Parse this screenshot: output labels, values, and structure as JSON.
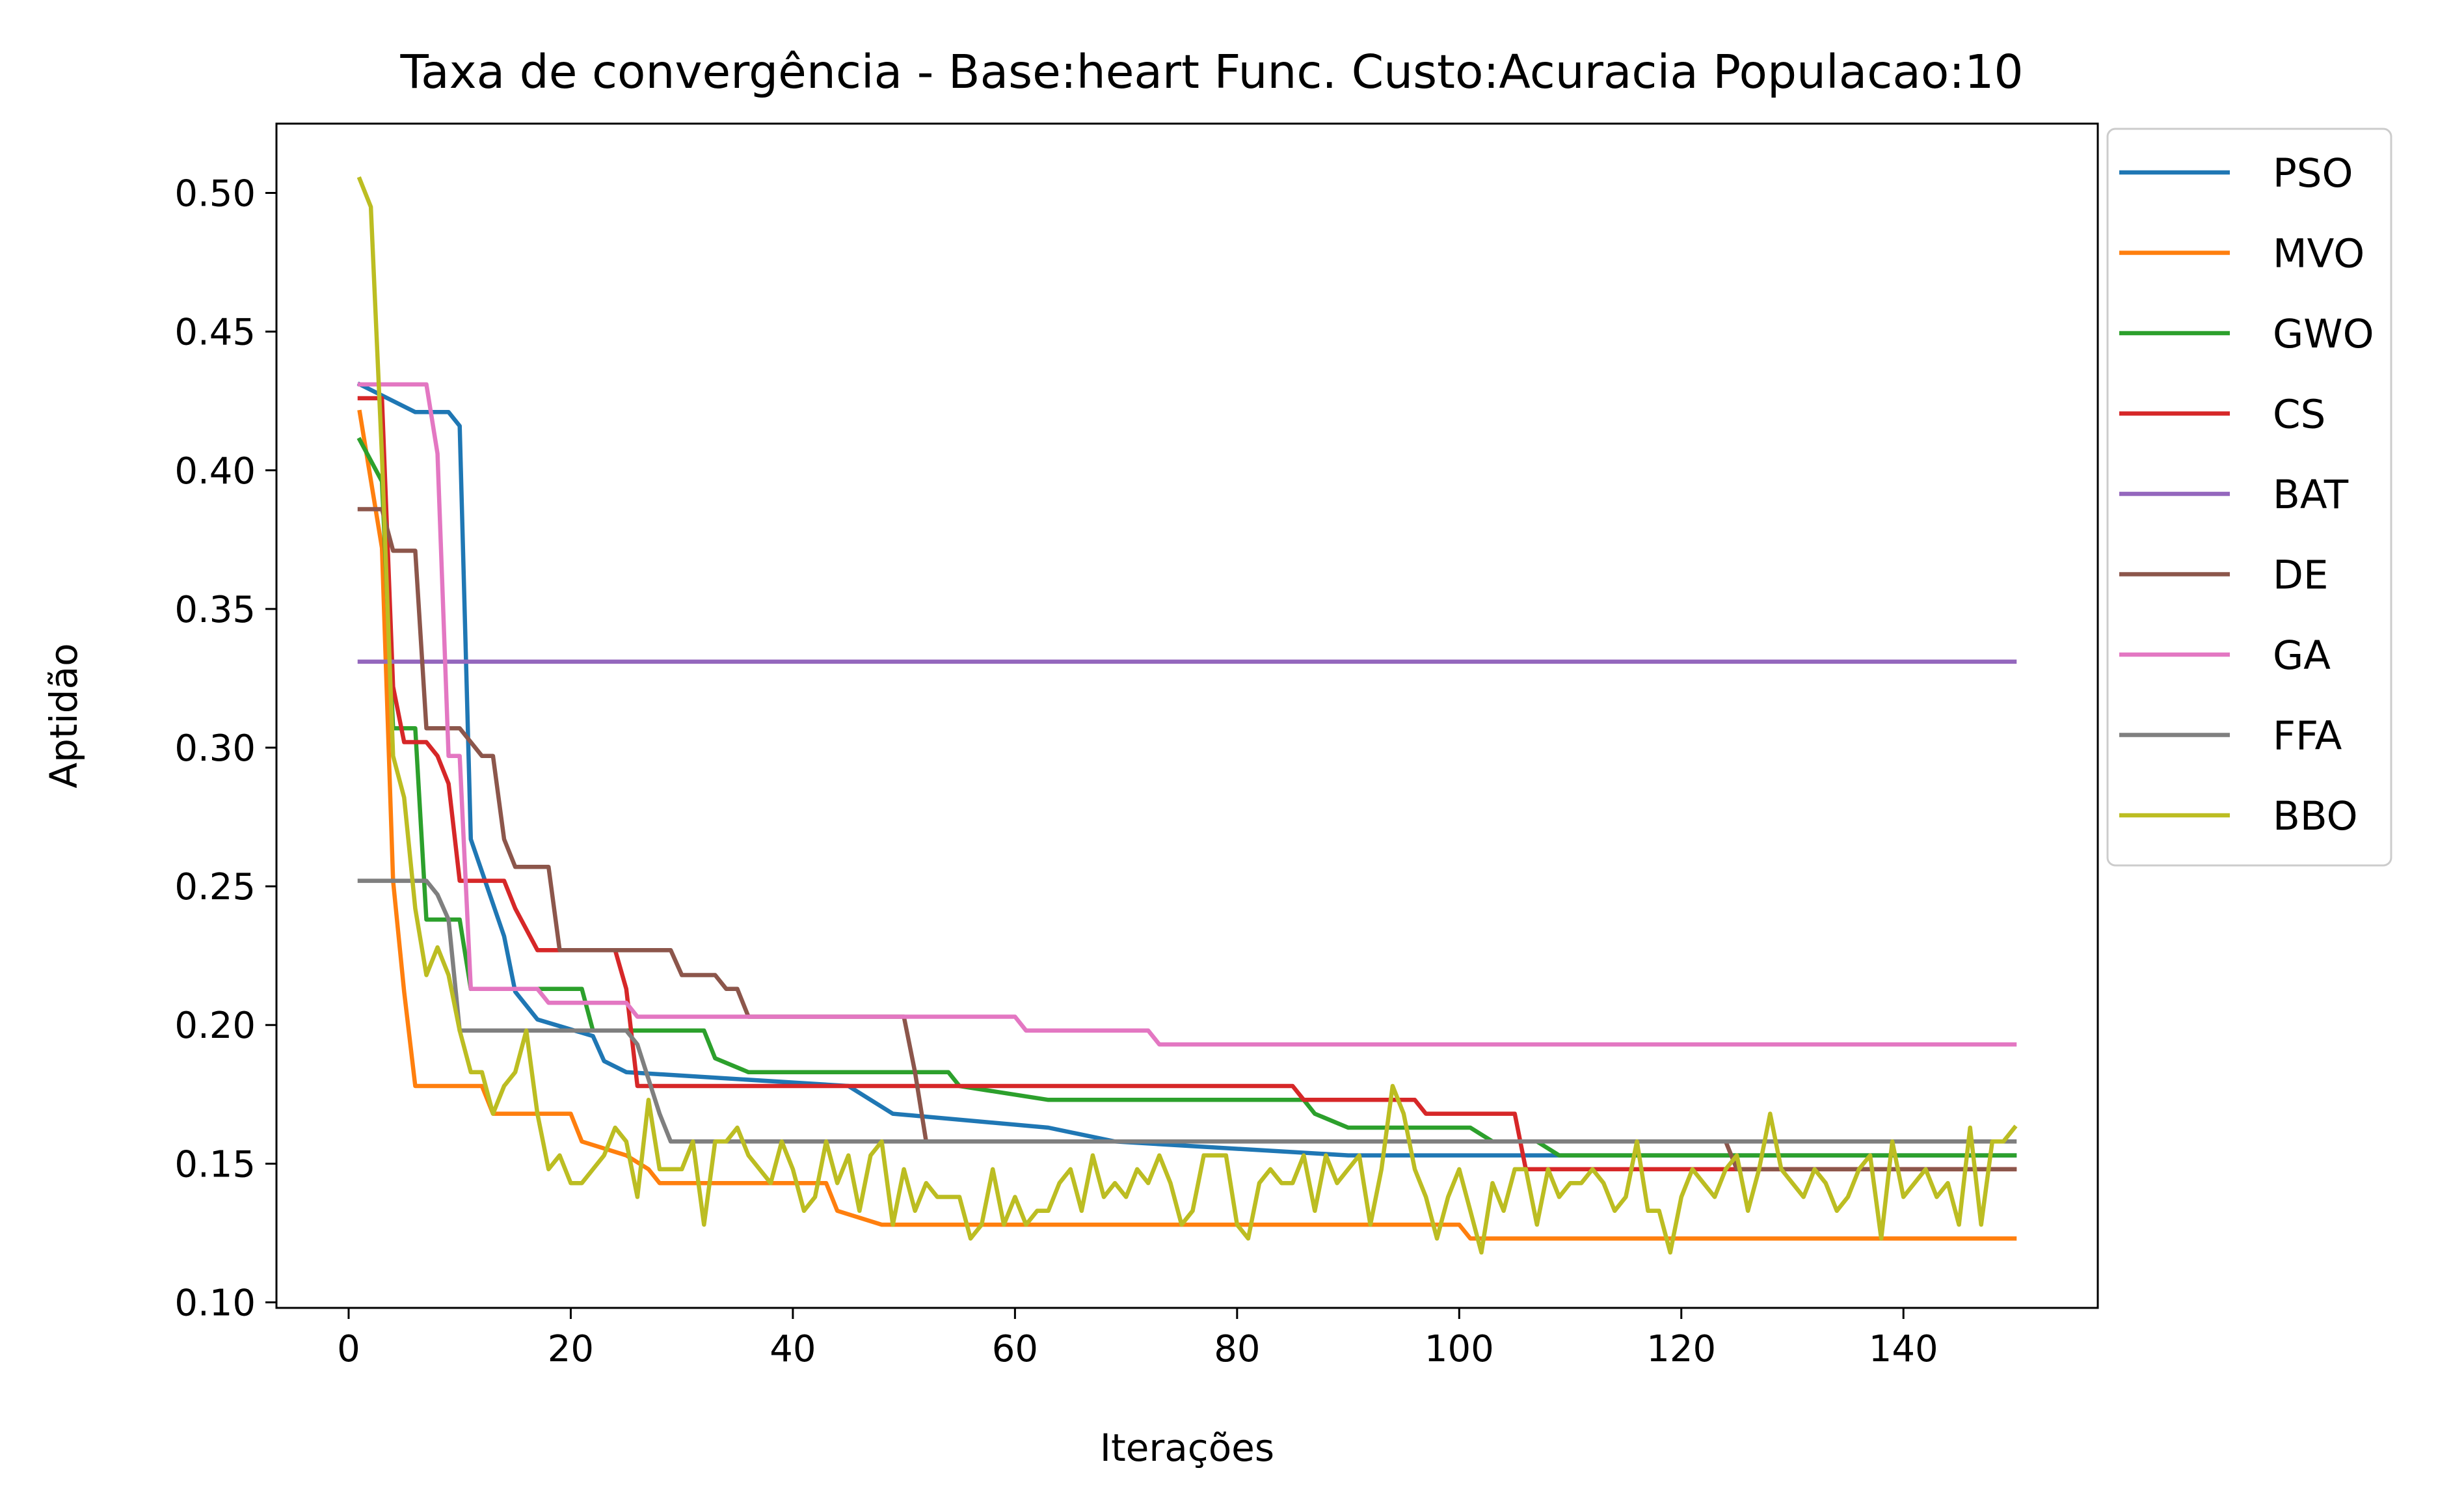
{
  "chart_data": {
    "type": "line",
    "title": "Taxa de convergência - Base:heart Func. Custo:Acuracia Populacao:10",
    "xlabel": "Iterações",
    "ylabel": "Aptidão",
    "xlim": [
      -6.5,
      157.5
    ],
    "ylim": [
      0.098,
      0.525
    ],
    "xticks": [
      0,
      20,
      40,
      60,
      80,
      100,
      120,
      140
    ],
    "yticks": [
      0.1,
      0.15,
      0.2,
      0.25,
      0.3,
      0.35,
      0.4,
      0.45,
      0.5
    ],
    "xtick_labels": [
      "0",
      "20",
      "40",
      "60",
      "80",
      "100",
      "120",
      "140"
    ],
    "ytick_labels": [
      "0.10",
      "0.15",
      "0.20",
      "0.25",
      "0.30",
      "0.35",
      "0.40",
      "0.45",
      "0.50"
    ],
    "grid": false,
    "legend_position": "outside-top-right",
    "series": [
      {
        "name": "PSO",
        "color": "#1f77b4",
        "points": [
          [
            1,
            0.431
          ],
          [
            6,
            0.421
          ],
          [
            9,
            0.421
          ],
          [
            10,
            0.416
          ],
          [
            11,
            0.267
          ],
          [
            14,
            0.232
          ],
          [
            15,
            0.212
          ],
          [
            17,
            0.202
          ],
          [
            22,
            0.196
          ],
          [
            23,
            0.187
          ],
          [
            25,
            0.183
          ],
          [
            45,
            0.178
          ],
          [
            49,
            0.168
          ],
          [
            63,
            0.163
          ],
          [
            69,
            0.158
          ],
          [
            90,
            0.153
          ],
          [
            150,
            0.153
          ]
        ]
      },
      {
        "name": "MVO",
        "color": "#ff7f0e",
        "points": [
          [
            1,
            0.421
          ],
          [
            3,
            0.372
          ],
          [
            4,
            0.252
          ],
          [
            5,
            0.212
          ],
          [
            6,
            0.178
          ],
          [
            12,
            0.178
          ],
          [
            13,
            0.168
          ],
          [
            20,
            0.168
          ],
          [
            21,
            0.158
          ],
          [
            25,
            0.153
          ],
          [
            27,
            0.148
          ],
          [
            28,
            0.143
          ],
          [
            43,
            0.143
          ],
          [
            44,
            0.133
          ],
          [
            48,
            0.128
          ],
          [
            100,
            0.128
          ],
          [
            101,
            0.123
          ],
          [
            150,
            0.123
          ]
        ]
      },
      {
        "name": "GWO",
        "color": "#2ca02c",
        "points": [
          [
            1,
            0.411
          ],
          [
            3,
            0.396
          ],
          [
            4,
            0.307
          ],
          [
            6,
            0.307
          ],
          [
            7,
            0.238
          ],
          [
            10,
            0.238
          ],
          [
            11,
            0.213
          ],
          [
            21,
            0.213
          ],
          [
            22,
            0.198
          ],
          [
            32,
            0.198
          ],
          [
            33,
            0.188
          ],
          [
            36,
            0.183
          ],
          [
            54,
            0.183
          ],
          [
            55,
            0.178
          ],
          [
            63,
            0.173
          ],
          [
            86,
            0.173
          ],
          [
            87,
            0.168
          ],
          [
            90,
            0.163
          ],
          [
            101,
            0.163
          ],
          [
            103,
            0.158
          ],
          [
            107,
            0.158
          ],
          [
            109,
            0.153
          ],
          [
            150,
            0.153
          ]
        ]
      },
      {
        "name": "CS",
        "color": "#d62728",
        "points": [
          [
            1,
            0.426
          ],
          [
            3,
            0.426
          ],
          [
            4,
            0.322
          ],
          [
            5,
            0.302
          ],
          [
            7,
            0.302
          ],
          [
            8,
            0.297
          ],
          [
            9,
            0.287
          ],
          [
            10,
            0.252
          ],
          [
            14,
            0.252
          ],
          [
            15,
            0.242
          ],
          [
            17,
            0.227
          ],
          [
            24,
            0.227
          ],
          [
            25,
            0.213
          ],
          [
            26,
            0.178
          ],
          [
            85,
            0.178
          ],
          [
            86,
            0.173
          ],
          [
            96,
            0.173
          ],
          [
            97,
            0.168
          ],
          [
            105,
            0.168
          ],
          [
            106,
            0.148
          ],
          [
            150,
            0.148
          ]
        ]
      },
      {
        "name": "BAT",
        "color": "#9467bd",
        "points": [
          [
            1,
            0.331
          ],
          [
            150,
            0.331
          ]
        ]
      },
      {
        "name": "DE",
        "color": "#8c564b",
        "points": [
          [
            1,
            0.386
          ],
          [
            3,
            0.386
          ],
          [
            4,
            0.371
          ],
          [
            6,
            0.371
          ],
          [
            7,
            0.307
          ],
          [
            10,
            0.307
          ],
          [
            11,
            0.302
          ],
          [
            12,
            0.297
          ],
          [
            13,
            0.297
          ],
          [
            14,
            0.267
          ],
          [
            15,
            0.257
          ],
          [
            18,
            0.257
          ],
          [
            19,
            0.227
          ],
          [
            29,
            0.227
          ],
          [
            30,
            0.218
          ],
          [
            33,
            0.218
          ],
          [
            34,
            0.213
          ],
          [
            35,
            0.213
          ],
          [
            36,
            0.203
          ],
          [
            50,
            0.203
          ],
          [
            51,
            0.183
          ],
          [
            52,
            0.158
          ],
          [
            124,
            0.158
          ],
          [
            125,
            0.148
          ],
          [
            150,
            0.148
          ]
        ]
      },
      {
        "name": "GA",
        "color": "#e377c2",
        "points": [
          [
            1,
            0.431
          ],
          [
            7,
            0.431
          ],
          [
            8,
            0.406
          ],
          [
            9,
            0.297
          ],
          [
            10,
            0.297
          ],
          [
            11,
            0.213
          ],
          [
            17,
            0.213
          ],
          [
            18,
            0.208
          ],
          [
            25,
            0.208
          ],
          [
            26,
            0.203
          ],
          [
            60,
            0.203
          ],
          [
            61,
            0.198
          ],
          [
            72,
            0.198
          ],
          [
            73,
            0.193
          ],
          [
            150,
            0.193
          ]
        ]
      },
      {
        "name": "FFA",
        "color": "#7f7f7f",
        "points": [
          [
            1,
            0.252
          ],
          [
            7,
            0.252
          ],
          [
            8,
            0.247
          ],
          [
            9,
            0.238
          ],
          [
            10,
            0.198
          ],
          [
            25,
            0.198
          ],
          [
            26,
            0.193
          ],
          [
            28,
            0.168
          ],
          [
            29,
            0.158
          ],
          [
            150,
            0.158
          ]
        ]
      },
      {
        "name": "BBO",
        "color": "#bcbd22",
        "points": [
          [
            1,
            0.505
          ],
          [
            2,
            0.495
          ],
          [
            3,
            0.405
          ],
          [
            4,
            0.297
          ],
          [
            5,
            0.282
          ],
          [
            6,
            0.242
          ],
          [
            7,
            0.218
          ],
          [
            8,
            0.228
          ],
          [
            9,
            0.218
          ],
          [
            10,
            0.198
          ],
          [
            11,
            0.183
          ],
          [
            12,
            0.183
          ],
          [
            13,
            0.168
          ],
          [
            14,
            0.178
          ],
          [
            15,
            0.183
          ],
          [
            16,
            0.198
          ],
          [
            17,
            0.168
          ],
          [
            18,
            0.148
          ],
          [
            19,
            0.153
          ],
          [
            20,
            0.143
          ],
          [
            21,
            0.143
          ],
          [
            22,
            0.148
          ],
          [
            23,
            0.153
          ],
          [
            24,
            0.163
          ],
          [
            25,
            0.158
          ],
          [
            26,
            0.138
          ],
          [
            27,
            0.173
          ],
          [
            28,
            0.148
          ],
          [
            29,
            0.148
          ],
          [
            30,
            0.148
          ],
          [
            31,
            0.158
          ],
          [
            32,
            0.128
          ],
          [
            33,
            0.158
          ],
          [
            34,
            0.158
          ],
          [
            35,
            0.163
          ],
          [
            36,
            0.153
          ],
          [
            37,
            0.148
          ],
          [
            38,
            0.143
          ],
          [
            39,
            0.158
          ],
          [
            40,
            0.148
          ],
          [
            41,
            0.133
          ],
          [
            42,
            0.138
          ],
          [
            43,
            0.158
          ],
          [
            44,
            0.143
          ],
          [
            45,
            0.153
          ],
          [
            46,
            0.133
          ],
          [
            47,
            0.153
          ],
          [
            48,
            0.158
          ],
          [
            49,
            0.128
          ],
          [
            50,
            0.148
          ],
          [
            51,
            0.133
          ],
          [
            52,
            0.143
          ],
          [
            53,
            0.138
          ],
          [
            54,
            0.138
          ],
          [
            55,
            0.138
          ],
          [
            56,
            0.123
          ],
          [
            57,
            0.128
          ],
          [
            58,
            0.148
          ],
          [
            59,
            0.128
          ],
          [
            60,
            0.138
          ],
          [
            61,
            0.128
          ],
          [
            62,
            0.133
          ],
          [
            63,
            0.133
          ],
          [
            64,
            0.143
          ],
          [
            65,
            0.148
          ],
          [
            66,
            0.133
          ],
          [
            67,
            0.153
          ],
          [
            68,
            0.138
          ],
          [
            69,
            0.143
          ],
          [
            70,
            0.138
          ],
          [
            71,
            0.148
          ],
          [
            72,
            0.143
          ],
          [
            73,
            0.153
          ],
          [
            74,
            0.143
          ],
          [
            75,
            0.128
          ],
          [
            76,
            0.133
          ],
          [
            77,
            0.153
          ],
          [
            78,
            0.153
          ],
          [
            79,
            0.153
          ],
          [
            80,
            0.128
          ],
          [
            81,
            0.123
          ],
          [
            82,
            0.143
          ],
          [
            83,
            0.148
          ],
          [
            84,
            0.143
          ],
          [
            85,
            0.143
          ],
          [
            86,
            0.153
          ],
          [
            87,
            0.133
          ],
          [
            88,
            0.153
          ],
          [
            89,
            0.143
          ],
          [
            90,
            0.148
          ],
          [
            91,
            0.153
          ],
          [
            92,
            0.128
          ],
          [
            93,
            0.148
          ],
          [
            94,
            0.178
          ],
          [
            95,
            0.168
          ],
          [
            96,
            0.148
          ],
          [
            97,
            0.138
          ],
          [
            98,
            0.123
          ],
          [
            99,
            0.138
          ],
          [
            100,
            0.148
          ],
          [
            101,
            0.133
          ],
          [
            102,
            0.118
          ],
          [
            103,
            0.143
          ],
          [
            104,
            0.133
          ],
          [
            105,
            0.148
          ],
          [
            106,
            0.148
          ],
          [
            107,
            0.128
          ],
          [
            108,
            0.148
          ],
          [
            109,
            0.138
          ],
          [
            110,
            0.143
          ],
          [
            111,
            0.143
          ],
          [
            112,
            0.148
          ],
          [
            113,
            0.143
          ],
          [
            114,
            0.133
          ],
          [
            115,
            0.138
          ],
          [
            116,
            0.158
          ],
          [
            117,
            0.133
          ],
          [
            118,
            0.133
          ],
          [
            119,
            0.118
          ],
          [
            120,
            0.138
          ],
          [
            121,
            0.148
          ],
          [
            122,
            0.143
          ],
          [
            123,
            0.138
          ],
          [
            124,
            0.148
          ],
          [
            125,
            0.153
          ],
          [
            126,
            0.133
          ],
          [
            127,
            0.148
          ],
          [
            128,
            0.168
          ],
          [
            129,
            0.148
          ],
          [
            130,
            0.143
          ],
          [
            131,
            0.138
          ],
          [
            132,
            0.148
          ],
          [
            133,
            0.143
          ],
          [
            134,
            0.133
          ],
          [
            135,
            0.138
          ],
          [
            136,
            0.148
          ],
          [
            137,
            0.153
          ],
          [
            138,
            0.123
          ],
          [
            139,
            0.158
          ],
          [
            140,
            0.138
          ],
          [
            141,
            0.143
          ],
          [
            142,
            0.148
          ],
          [
            143,
            0.138
          ],
          [
            144,
            0.143
          ],
          [
            145,
            0.128
          ],
          [
            146,
            0.163
          ],
          [
            147,
            0.128
          ],
          [
            148,
            0.158
          ],
          [
            149,
            0.158
          ],
          [
            150,
            0.163
          ]
        ]
      }
    ]
  }
}
